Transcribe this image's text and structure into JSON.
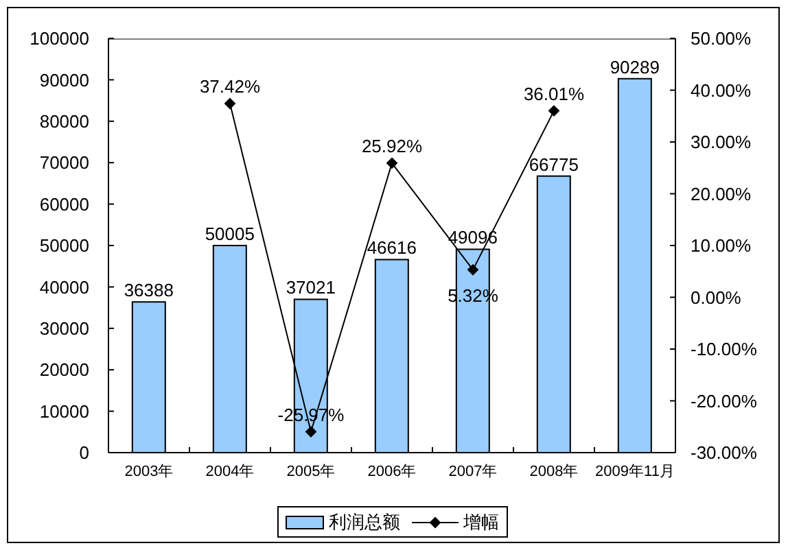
{
  "chart_data": {
    "type": "bar",
    "categories": [
      "2003年",
      "2004年",
      "2005年",
      "2006年",
      "2007年",
      "2008年",
      "2009年11月"
    ],
    "series": [
      {
        "name": "利润总额",
        "color": "#99ccff",
        "values": [
          36388,
          50005,
          37021,
          46616,
          49096,
          66775,
          90289
        ],
        "value_labels": [
          "36388",
          "50005",
          "37021",
          "46616",
          "49096",
          "66775",
          "90289"
        ]
      },
      {
        "name": "增幅",
        "type": "line",
        "axis": "y2",
        "color": "#000000",
        "values": [
          null,
          37.42,
          -25.97,
          25.92,
          5.32,
          36.01,
          null
        ],
        "value_labels": [
          null,
          "37.42%",
          "-25.97%",
          "25.92%",
          "5.32%",
          "36.01%",
          null
        ]
      }
    ],
    "ylim": [
      0,
      100000
    ],
    "yticks": [
      0,
      10000,
      20000,
      30000,
      40000,
      50000,
      60000,
      70000,
      80000,
      90000,
      100000
    ],
    "y2lim": [
      -30,
      50
    ],
    "y2ticks": [
      {
        "value": -30,
        "label": "-30.00%"
      },
      {
        "value": -20,
        "label": "-20.00%"
      },
      {
        "value": -10,
        "label": "-10.00%"
      },
      {
        "value": 0,
        "label": "0.00%"
      },
      {
        "value": 10,
        "label": "10.00%"
      },
      {
        "value": 20,
        "label": "20.00%"
      },
      {
        "value": 30,
        "label": "30.00%"
      },
      {
        "value": 40,
        "label": "40.00%"
      },
      {
        "value": 50,
        "label": "50.00%"
      }
    ],
    "legend": "bottom",
    "marker": "diamond",
    "line_style": "solid"
  }
}
